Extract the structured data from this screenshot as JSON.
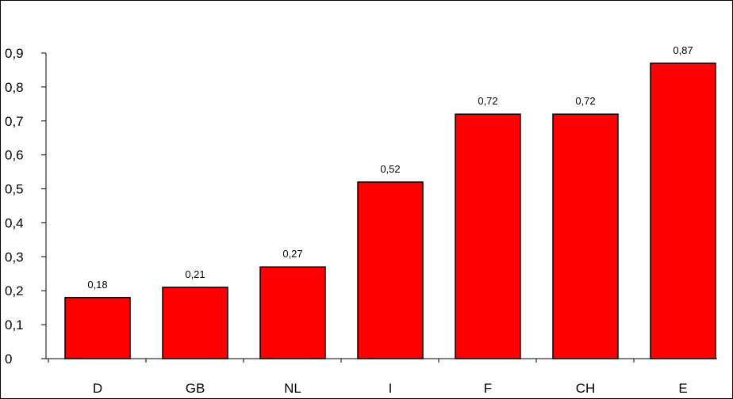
{
  "chart_data": {
    "type": "bar",
    "title": "",
    "xlabel": "",
    "ylabel": "",
    "categories": [
      "D",
      "GB",
      "NL",
      "I",
      "F",
      "CH",
      "E"
    ],
    "values": [
      0.18,
      0.21,
      0.27,
      0.52,
      0.72,
      0.72,
      0.87
    ],
    "value_labels": [
      "0,18",
      "0,21",
      "0,27",
      "0,52",
      "0,72",
      "0,72",
      "0,87"
    ],
    "ylim": [
      0,
      0.9
    ],
    "yticks": [
      0,
      0.1,
      0.2,
      0.3,
      0.4,
      0.5,
      0.6,
      0.7,
      0.8,
      0.9
    ],
    "ytick_labels": [
      "0",
      "0,1",
      "0,2",
      "0,3",
      "0,4",
      "0,5",
      "0,6",
      "0,7",
      "0,8",
      "0,9"
    ],
    "grid": false,
    "legend": "none",
    "bar_color": "#ff0000",
    "bar_edge_color": "#000000"
  }
}
